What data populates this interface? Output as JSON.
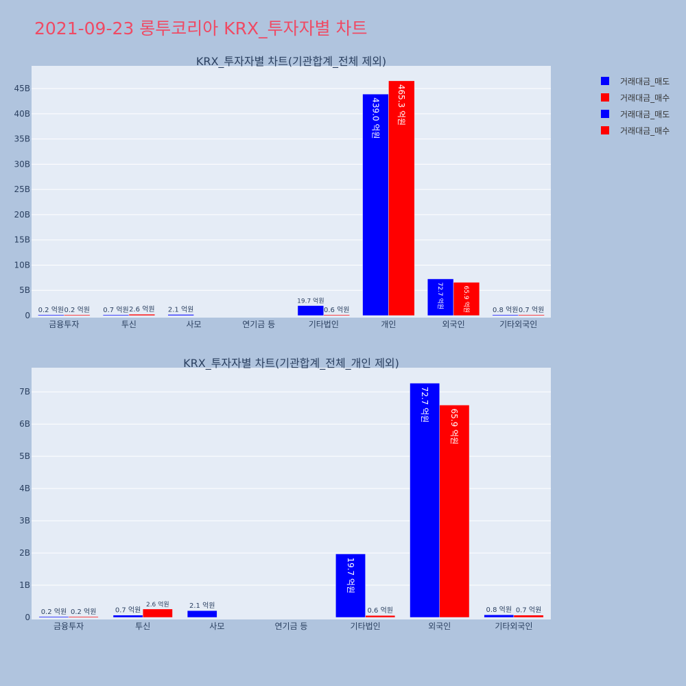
{
  "title": "2021-09-23 롱투코리아 KRX_투자자별 차트",
  "legend": [
    {
      "label": "거래대금_매도",
      "color": "#0000ff"
    },
    {
      "label": "거래대금_매수",
      "color": "#ff0000"
    },
    {
      "label": "거래대금_매도",
      "color": "#0000ff"
    },
    {
      "label": "거래대금_매수",
      "color": "#ff0000"
    }
  ],
  "chart_data": [
    {
      "type": "bar",
      "title": "KRX_투자자별 차트(기관합계_전체 제외)",
      "categories": [
        "금융투자",
        "투신",
        "사모",
        "연기금 등",
        "기타법인",
        "개인",
        "외국인",
        "기타외국인"
      ],
      "series": [
        {
          "name": "거래대금_매도",
          "color": "#0000ff",
          "values": [
            20000000,
            70000000,
            210000000,
            0,
            1970000000,
            43900000000,
            7270000000,
            80000000
          ],
          "labels": [
            "0.2 억원",
            "0.7 억원",
            "2.1 억원",
            "",
            "19.7 억원",
            "439.0 억원",
            "72.7 억원",
            "0.8 억원"
          ]
        },
        {
          "name": "거래대금_매수",
          "color": "#ff0000",
          "values": [
            20000000,
            260000000,
            0,
            0,
            60000000,
            46530000000,
            6590000000,
            70000000
          ],
          "labels": [
            "0.2 억원",
            "2.6 억원",
            "",
            "",
            "0.6 억원",
            "465.3 억원",
            "65.9 억원",
            "0.7 억원"
          ]
        }
      ],
      "ylim": [
        0,
        49500000000
      ],
      "yticks": [
        0,
        5000000000,
        10000000000,
        15000000000,
        20000000000,
        25000000000,
        30000000000,
        35000000000,
        40000000000,
        45000000000
      ],
      "yticklabels": [
        "0",
        "5B",
        "10B",
        "15B",
        "20B",
        "25B",
        "30B",
        "35B",
        "40B",
        "45B"
      ],
      "grid": true
    },
    {
      "type": "bar",
      "title": "KRX_투자자별 차트(기관합계_전체_개인 제외)",
      "categories": [
        "금융투자",
        "투신",
        "사모",
        "연기금 등",
        "기타법인",
        "외국인",
        "기타외국인"
      ],
      "series": [
        {
          "name": "거래대금_매도",
          "color": "#0000ff",
          "values": [
            20000000,
            70000000,
            210000000,
            0,
            1970000000,
            7270000000,
            80000000
          ],
          "labels": [
            "0.2 억원",
            "0.7 억원",
            "2.1 억원",
            "",
            "19.7 억원",
            "72.7 억원",
            "0.8 억원"
          ]
        },
        {
          "name": "거래대금_매수",
          "color": "#ff0000",
          "values": [
            20000000,
            260000000,
            0,
            0,
            60000000,
            6590000000,
            70000000
          ],
          "labels": [
            "0.2 억원",
            "2.6 억원",
            "",
            "",
            "0.6 억원",
            "65.9 억원",
            "0.7 억원"
          ]
        }
      ],
      "ylim": [
        0,
        7750000000
      ],
      "yticks": [
        0,
        1000000000,
        2000000000,
        3000000000,
        4000000000,
        5000000000,
        6000000000,
        7000000000
      ],
      "yticklabels": [
        "0",
        "1B",
        "2B",
        "3B",
        "4B",
        "5B",
        "6B",
        "7B"
      ],
      "grid": true
    }
  ]
}
